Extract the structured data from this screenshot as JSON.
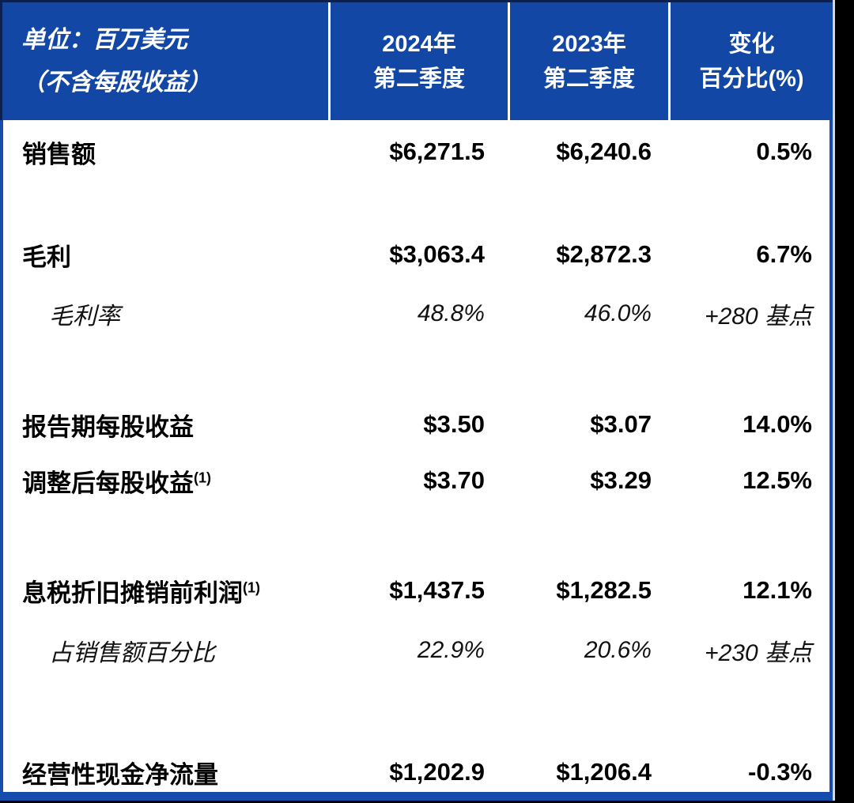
{
  "header": {
    "unit_label": {
      "line1": "单位：百万美元",
      "line2": "（不含每股收益）"
    },
    "col_2024": {
      "line1": "2024年",
      "line2": "第二季度"
    },
    "col_2023": {
      "line1": "2023年",
      "line2": "第二季度"
    },
    "col_change": {
      "line1": "变化",
      "line2": "百分比(%)"
    }
  },
  "rows": [
    {
      "label": "销售额",
      "v2024": "$6,271.5",
      "v2023": "$6,240.6",
      "change": "0.5%"
    },
    {
      "label": "毛利",
      "v2024": "$3,063.4",
      "v2023": "$2,872.3",
      "change": "6.7%"
    },
    {
      "label": "毛利率",
      "v2024": "48.8%",
      "v2023": "46.0%",
      "change": "+280 基点"
    },
    {
      "label": "报告期每股收益",
      "v2024": "$3.50",
      "v2023": "$3.07",
      "change": "14.0%"
    },
    {
      "label": "调整后每股收益",
      "sup": "(1)",
      "v2024": "$3.70",
      "v2023": "$3.29",
      "change": "12.5%"
    },
    {
      "label": "息税折旧摊销前利润",
      "sup": "(1)",
      "v2024": "$1,437.5",
      "v2023": "$1,282.5",
      "change": "12.1%"
    },
    {
      "label": "占销售额百分比",
      "v2024": "22.9%",
      "v2023": "20.6%",
      "change": "+230 基点"
    },
    {
      "label": "经营性现金净流量",
      "v2024": "$1,202.9",
      "v2023": "$1,206.4",
      "change": "-0.3%"
    }
  ],
  "colors": {
    "header_blue": "#1247A5",
    "border_blue": "#164CAB",
    "border_dark": "#0A1F52",
    "header_text": "#FFFFFF",
    "body_text": "#000000"
  },
  "chart_data": {
    "type": "table",
    "title": "单位：百万美元（不含每股收益）",
    "columns": [
      "单位：百万美元（不含每股收益）",
      "2024年第二季度",
      "2023年第二季度",
      "变化百分比(%)"
    ],
    "rows": [
      [
        "销售额",
        "$6,271.5",
        "$6,240.6",
        "0.5%"
      ],
      [
        "毛利",
        "$3,063.4",
        "$2,872.3",
        "6.7%"
      ],
      [
        "毛利率",
        "48.8%",
        "46.0%",
        "+280 基点"
      ],
      [
        "报告期每股收益",
        "$3.50",
        "$3.07",
        "14.0%"
      ],
      [
        "调整后每股收益(1)",
        "$3.70",
        "$3.29",
        "12.5%"
      ],
      [
        "息税折旧摊销前利润(1)",
        "$1,437.5",
        "$1,282.5",
        "12.1%"
      ],
      [
        "占销售额百分比",
        "22.9%",
        "20.6%",
        "+230 基点"
      ],
      [
        "经营性现金净流量",
        "$1,202.9",
        "$1,206.4",
        "-0.3%"
      ]
    ]
  }
}
